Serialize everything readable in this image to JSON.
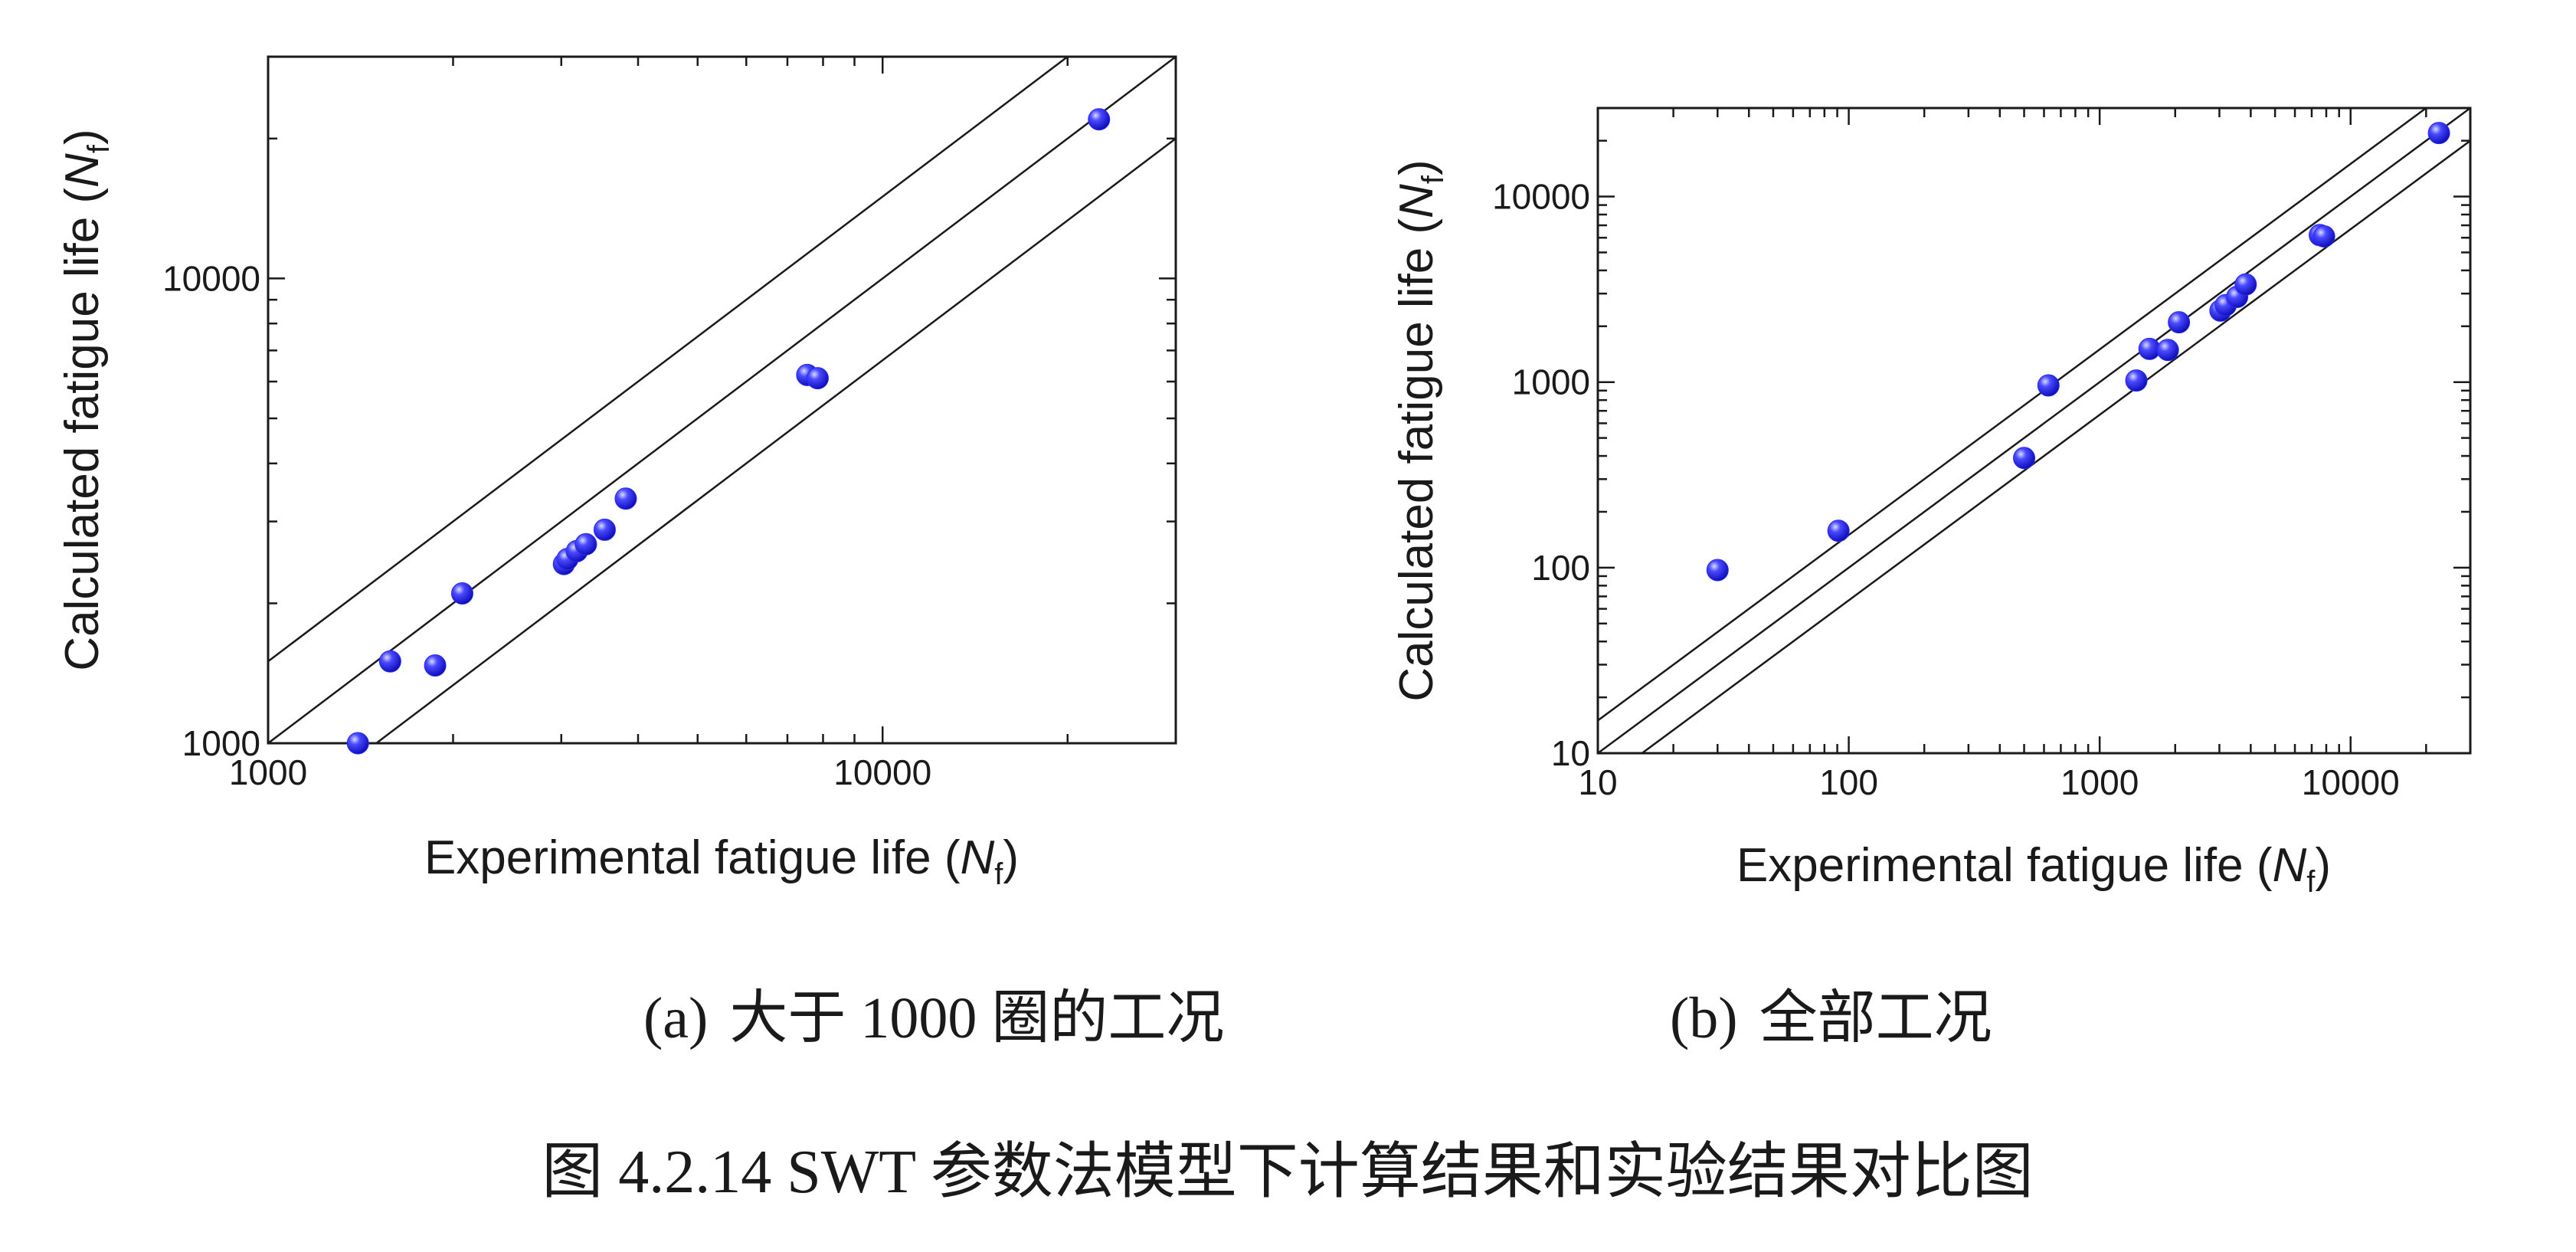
{
  "chart_data": [
    {
      "type": "scatter",
      "xscale": "log",
      "yscale": "log",
      "xlim": [
        1000,
        30000
      ],
      "ylim": [
        1000,
        30000
      ],
      "xticks": [
        1000,
        10000
      ],
      "yticks": [
        1000,
        10000
      ],
      "xtick_labels": [
        "1000",
        "10000"
      ],
      "ytick_labels": [
        "1000",
        "10000"
      ],
      "xlabel": {
        "pre": "Experimental fatigue life (",
        "sym": "N",
        "sub": "f",
        "post": ")"
      },
      "ylabel": {
        "pre": "Calculated fatigue life (",
        "sym": "N",
        "sub": "f",
        "post": ")"
      },
      "reference_lines": [
        {
          "factor": 1.5
        },
        {
          "factor": 1
        },
        {
          "factor": 0.6667
        }
      ],
      "points": [
        {
          "x": 1400,
          "y": 1000
        },
        {
          "x": 1580,
          "y": 1500
        },
        {
          "x": 1870,
          "y": 1470
        },
        {
          "x": 2070,
          "y": 2100
        },
        {
          "x": 3030,
          "y": 2430
        },
        {
          "x": 3070,
          "y": 2490
        },
        {
          "x": 3180,
          "y": 2590
        },
        {
          "x": 3290,
          "y": 2680
        },
        {
          "x": 3530,
          "y": 2880
        },
        {
          "x": 3820,
          "y": 3360
        },
        {
          "x": 7540,
          "y": 6200
        },
        {
          "x": 7840,
          "y": 6100
        },
        {
          "x": 22500,
          "y": 22000
        }
      ],
      "marker_color": "#2a2aff",
      "caption": {
        "label": "(a)",
        "text": "大于 1000 圈的工况"
      }
    },
    {
      "type": "scatter",
      "xscale": "log",
      "yscale": "log",
      "xlim": [
        10,
        30000
      ],
      "ylim": [
        10,
        30000
      ],
      "xticks": [
        10,
        100,
        1000,
        10000
      ],
      "yticks": [
        10,
        100,
        1000,
        10000
      ],
      "xtick_labels": [
        "10",
        "100",
        "1000",
        "10000"
      ],
      "ytick_labels": [
        "10",
        "100",
        "1000",
        "10000"
      ],
      "xlabel": {
        "pre": "Experimental fatigue life (",
        "sym": "N",
        "sub": "f",
        "post": ")"
      },
      "ylabel": {
        "pre": "Calculated fatigue life (",
        "sym": "N",
        "sub": "f",
        "post": ")"
      },
      "reference_lines": [
        {
          "factor": 1.5
        },
        {
          "factor": 1
        },
        {
          "factor": 0.6667
        }
      ],
      "points": [
        {
          "x": 30,
          "y": 97
        },
        {
          "x": 91,
          "y": 158
        },
        {
          "x": 500,
          "y": 390
        },
        {
          "x": 625,
          "y": 960
        },
        {
          "x": 1400,
          "y": 1020
        },
        {
          "x": 1580,
          "y": 1510
        },
        {
          "x": 1870,
          "y": 1490
        },
        {
          "x": 2070,
          "y": 2100
        },
        {
          "x": 3030,
          "y": 2430
        },
        {
          "x": 3180,
          "y": 2600
        },
        {
          "x": 3530,
          "y": 2880
        },
        {
          "x": 3820,
          "y": 3360
        },
        {
          "x": 7540,
          "y": 6200
        },
        {
          "x": 7840,
          "y": 6100
        },
        {
          "x": 22500,
          "y": 22000
        }
      ],
      "marker_color": "#2a2aff",
      "caption": {
        "label": "(b)",
        "text": "全部工况"
      }
    }
  ],
  "figure_caption": "图 4.2.14 SWT 参数法模型下计算结果和实验结果对比图"
}
